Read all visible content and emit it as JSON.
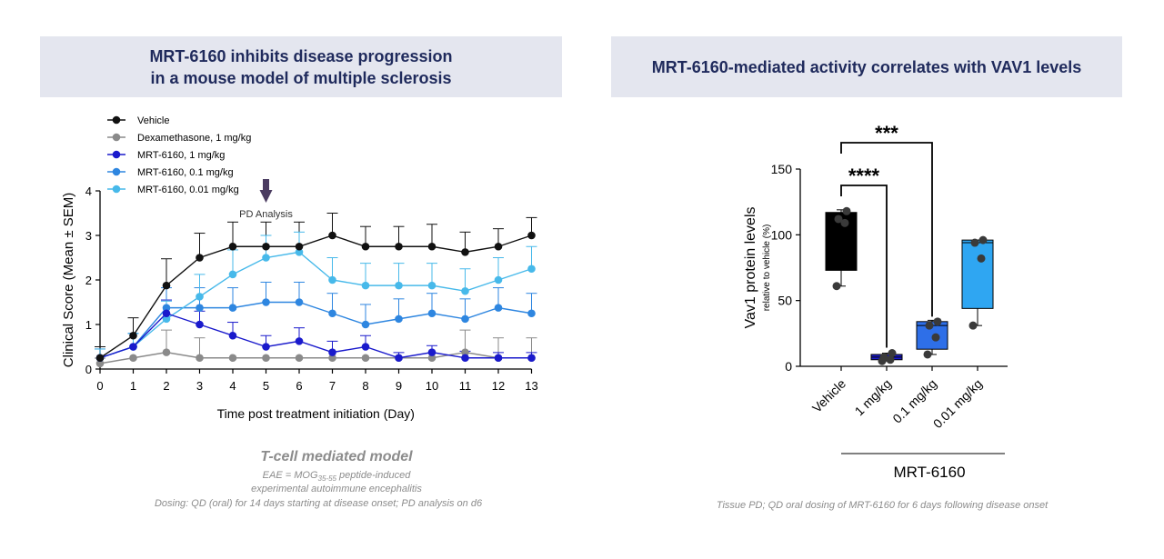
{
  "left_panel": {
    "banner_line1": "MRT-6160 inhibits disease progression",
    "banner_line2": "in a mouse model of multiple sclerosis",
    "model_title": "T-cell mediated model",
    "model_def1_prefix": "EAE = MOG",
    "model_def1_sub": "35-55",
    "model_def1_suffix": " peptide-induced",
    "model_def2": "experimental autoimmune  encephalitis",
    "dosing": "Dosing: QD (oral) for 14 days starting at disease onset; PD analysis on d6"
  },
  "right_panel": {
    "banner": "MRT-6160-mediated activity correlates with VAV1 levels",
    "note": "Tissue PD; QD oral dosing of MRT-6160 for 6 days following disease onset"
  },
  "chart_data": [
    {
      "type": "line",
      "xlabel": "Time post treatment initiation (Day)",
      "ylabel": "Clinical Score (Mean ± SEM)",
      "xlim": [
        0,
        13
      ],
      "ylim": [
        0,
        4
      ],
      "xticks": [
        0,
        1,
        2,
        3,
        4,
        5,
        6,
        7,
        8,
        9,
        10,
        11,
        12,
        13
      ],
      "yticks": [
        0,
        1,
        2,
        3,
        4
      ],
      "grid": false,
      "legend_position": "top-left",
      "annotation": {
        "text": "PD Analysis",
        "x": 5,
        "marker": "down-arrow"
      },
      "x": [
        0,
        1,
        2,
        3,
        4,
        5,
        6,
        7,
        8,
        9,
        10,
        11,
        12,
        13
      ],
      "series": [
        {
          "name": "Vehicle",
          "color": "#111111",
          "values": [
            0.25,
            0.75,
            1.875,
            2.5,
            2.75,
            2.75,
            2.75,
            3.0,
            2.75,
            2.75,
            2.75,
            2.625,
            2.75,
            3.0
          ],
          "sem": [
            0.25,
            0.4,
            0.6,
            0.55,
            0.55,
            0.55,
            0.55,
            0.5,
            0.45,
            0.45,
            0.5,
            0.45,
            0.4,
            0.4
          ]
        },
        {
          "name": "Dexamethasone, 1 mg/kg",
          "color": "#8a8a8a",
          "values": [
            0.125,
            0.25,
            0.375,
            0.25,
            0.25,
            0.25,
            0.25,
            0.25,
            0.25,
            0.25,
            0.25,
            0.375,
            0.25,
            0.25
          ],
          "sem": [
            0.12,
            0.0,
            0.5,
            0.45,
            0.0,
            0.0,
            0.0,
            0.0,
            0.0,
            0.0,
            0.0,
            0.5,
            0.45,
            0.45
          ]
        },
        {
          "name": "MRT-6160, 1 mg/kg",
          "color": "#1a1acc",
          "values": [
            0.25,
            0.5,
            1.25,
            1.0,
            0.75,
            0.5,
            0.625,
            0.375,
            0.5,
            0.25,
            0.375,
            0.25,
            0.25,
            0.25
          ],
          "sem": [
            0.2,
            0.3,
            0.3,
            0.3,
            0.3,
            0.25,
            0.3,
            0.25,
            0.25,
            0.12,
            0.15,
            0.15,
            0.12,
            0.12
          ]
        },
        {
          "name": "MRT-6160, 0.1 mg/kg",
          "color": "#2e86e0",
          "values": [
            0.25,
            0.5,
            1.375,
            1.375,
            1.375,
            1.5,
            1.5,
            1.25,
            1.0,
            1.125,
            1.25,
            1.125,
            1.375,
            1.25
          ],
          "sem": [
            0.2,
            0.3,
            0.45,
            0.45,
            0.45,
            0.45,
            0.45,
            0.45,
            0.45,
            0.45,
            0.45,
            0.45,
            0.45,
            0.45
          ]
        },
        {
          "name": "MRT-6160, 0.01 mg/kg",
          "color": "#47b9ea",
          "values": [
            0.25,
            0.5,
            1.125,
            1.625,
            2.125,
            2.5,
            2.625,
            2.0,
            1.875,
            1.875,
            1.875,
            1.75,
            2.0,
            2.25
          ],
          "sem": [
            0.2,
            0.3,
            0.4,
            0.5,
            0.55,
            0.5,
            0.45,
            0.5,
            0.5,
            0.5,
            0.5,
            0.5,
            0.5,
            0.5
          ]
        }
      ]
    },
    {
      "type": "box",
      "ylabel": "Vav1 protein levels",
      "ylabel_sub": "relative to vehicle (%)",
      "ylim": [
        0,
        150
      ],
      "yticks": [
        0,
        50,
        100,
        150
      ],
      "categories": [
        "Vehicle",
        "1 mg/kg",
        "0.1 mg/kg",
        "0.01 mg/kg"
      ],
      "group_label": "MRT-6160",
      "boxes": [
        {
          "category": "Vehicle",
          "color": "#000000",
          "min": 61,
          "q1": 73,
          "median": 112,
          "q3": 117,
          "max": 119,
          "points": [
            61,
            109,
            112,
            118
          ]
        },
        {
          "category": "1 mg/kg",
          "color": "#1a1ac8",
          "min": 4,
          "q1": 5,
          "median": 7,
          "q3": 9,
          "max": 10,
          "points": [
            4,
            5,
            7,
            10
          ]
        },
        {
          "category": "0.1 mg/kg",
          "color": "#2e6fe8",
          "min": 9,
          "q1": 13,
          "median": 31,
          "q3": 34,
          "max": 35,
          "points": [
            9,
            22,
            31,
            34
          ]
        },
        {
          "category": "0.01 mg/kg",
          "color": "#2fa6f2",
          "min": 31,
          "q1": 44,
          "median": 94,
          "q3": 96,
          "max": 96,
          "points": [
            31,
            82,
            94,
            96
          ]
        }
      ],
      "significance": [
        {
          "label": "****",
          "from": "Vehicle",
          "to": "1 mg/kg"
        },
        {
          "label": "***",
          "from": "Vehicle",
          "to": "0.1 mg/kg"
        }
      ]
    }
  ]
}
